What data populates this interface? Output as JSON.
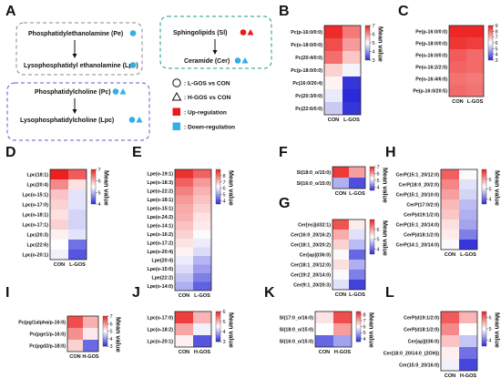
{
  "figure": {
    "panel_a_label": "A"
  },
  "pathway": {
    "pe_node": "Phosphatidylethanolamine (Pe)",
    "lpe_node": "Lysophosphatidyl ethanolamine (Lpe)",
    "pc_node": "Phosphatidylcholine (Pc)",
    "lpc_node": "Lysophosphatidylcholine (Lpc)",
    "sl_node": "Sphingolipids (Sl)",
    "cer_node": "Ceramide (Cer)"
  },
  "legend": {
    "circle_text": ": L-GOS vs CON",
    "triangle_text": ": H-GOS vs CON",
    "up_text": ": Up-regulation",
    "down_text": ": Down-regulation",
    "up_color": "#e8191f",
    "down_color": "#33aee6"
  },
  "colors": {
    "low": "#2a2ad8",
    "mid": "#ffffff",
    "high": "#ec2020"
  },
  "colorbar_title": "Mean value",
  "chart_data": [
    {
      "panel": "B",
      "type": "heatmap",
      "columns": [
        "CON",
        "L-GOS"
      ],
      "rows": [
        "Pc(p-16:0/0:0)",
        "Pc(o-18:0/0:0)",
        "Pc(20:4/0:0)",
        "Pc(p-18:0/0:0)",
        "Pc(16:0/20:4)",
        "Pc(20:3/0:0)",
        "Pc(22:6/0:0)"
      ],
      "values": [
        [
          6.9,
          6.2
        ],
        [
          6.6,
          5.9
        ],
        [
          6.3,
          5.5
        ],
        [
          5.4,
          4.9
        ],
        [
          5.1,
          3.1
        ],
        [
          4.8,
          3.0
        ],
        [
          4.5,
          3.1
        ]
      ],
      "colorbar_ticks": [
        3,
        4,
        5,
        6,
        7
      ],
      "vmin": 3,
      "vmax": 7
    },
    {
      "panel": "C",
      "type": "heatmap",
      "columns": [
        "CON",
        "L-GOS"
      ],
      "rows": [
        "Pe(p-16:0/0:0)",
        "Pe(p-18:0/0:0)",
        "Pe(o-16:0/0:0)",
        "Pe(o-16:2/2:0)",
        "Pe(o-16:4/6:0)",
        "Pe(p-16:0/20:5)"
      ],
      "values": [
        [
          8.9,
          8.9
        ],
        [
          8.7,
          8.6
        ],
        [
          8.2,
          8.0
        ],
        [
          8.1,
          8.0
        ],
        [
          7.9,
          7.8
        ],
        [
          8.0,
          7.9
        ]
      ],
      "colorbar_ticks": [
        3,
        4,
        5,
        6,
        7,
        8,
        9
      ],
      "vmin": 3,
      "vmax": 9
    },
    {
      "panel": "D",
      "type": "heatmap",
      "columns": [
        "CON",
        "L-GOS"
      ],
      "rows": [
        "Lpc(18:1)",
        "Lpc(20:4)",
        "Lpc(o-15:1)",
        "Lpc(o-17:0)",
        "Lpc(o-18:1)",
        "Lpc(o-17:1)",
        "Lpc(20:3)",
        "Lpc(22:6)",
        "Lpc(o-20:1)"
      ],
      "values": [
        [
          7.0,
          6.6
        ],
        [
          6.3,
          5.7
        ],
        [
          5.9,
          5.3
        ],
        [
          5.8,
          5.3
        ],
        [
          5.7,
          5.2
        ],
        [
          5.8,
          5.2
        ],
        [
          5.6,
          5.3
        ],
        [
          5.5,
          4.5
        ],
        [
          5.4,
          4.3
        ]
      ],
      "colorbar_ticks": [
        4,
        5,
        6,
        7
      ],
      "vmin": 4,
      "vmax": 7
    },
    {
      "panel": "E",
      "type": "heatmap",
      "columns": [
        "CON",
        "L-GOS"
      ],
      "rows": [
        "Lpe(o-19:1)",
        "Lpe(o-18:3)",
        "Lpe(o-22:2)",
        "Lpe(o-18:1)",
        "Lpe(o-15:1)",
        "Lpe(o-24:2)",
        "Lpe(o-14:1)",
        "Lpe(o-16:2)",
        "Lpe(o-17:2)",
        "Lpe(o-20:4)",
        "Lpe(20:4)",
        "Lpe(o-15:0)",
        "Lpe(22:2)",
        "Lpe(o-14:0)"
      ],
      "values": [
        [
          8.8,
          8.2
        ],
        [
          8.2,
          7.5
        ],
        [
          7.8,
          7.2
        ],
        [
          7.5,
          7.0
        ],
        [
          7.3,
          6.8
        ],
        [
          7.2,
          6.6
        ],
        [
          7.0,
          6.5
        ],
        [
          6.8,
          6.2
        ],
        [
          6.6,
          6.0
        ],
        [
          6.4,
          5.8
        ],
        [
          6.0,
          5.3
        ],
        [
          5.8,
          5.0
        ],
        [
          5.5,
          4.6
        ],
        [
          5.2,
          4.2
        ]
      ],
      "colorbar_ticks": [
        4,
        5,
        6,
        7,
        8
      ],
      "vmin": 3.5,
      "vmax": 9
    },
    {
      "panel": "F",
      "type": "heatmap",
      "columns": [
        "CON",
        "L-GOS"
      ],
      "rows": [
        "Sl(18:0_o/15:0)",
        "Sl(16:0_o/15:0)"
      ],
      "values": [
        [
          6.8,
          6.0
        ],
        [
          4.6,
          3.8
        ]
      ],
      "colorbar_ticks": [
        4,
        5,
        6,
        7
      ],
      "vmin": 3.5,
      "vmax": 7
    },
    {
      "panel": "G",
      "type": "heatmap",
      "columns": [
        "CON",
        "L-GOS"
      ],
      "rows": [
        "Cer[ns](d32:1)",
        "Cer(16:0_20/16:2)",
        "Cer(18:1_20/20:2)",
        "Cer[ap](t36:0)",
        "Cer(18:1_20/12:0)",
        "Cer(19:2_20/14:0)",
        "Cer(9:1_20/20:3)"
      ],
      "values": [
        [
          6.6,
          5.4
        ],
        [
          5.9,
          5.0
        ],
        [
          5.6,
          4.7
        ],
        [
          5.3,
          4.0
        ],
        [
          5.5,
          4.6
        ],
        [
          5.2,
          4.2
        ],
        [
          5.0,
          3.7
        ]
      ],
      "colorbar_ticks": [
        4,
        5,
        6
      ],
      "vmin": 3.5,
      "vmax": 7
    },
    {
      "panel": "H",
      "type": "heatmap",
      "columns": [
        "CON",
        "L-GOS"
      ],
      "rows": [
        "CerP(15:1_20/12:0)",
        "CerP(18:0_20/2:0)",
        "CerP(15:1_20/10:0)",
        "CerP(17:0/2:0)",
        "CerP(d19:1/2:0)",
        "CerP(15:1_20/14:0)",
        "CerP(d18:1/2:0)",
        "CerP(14:1_20/14:0)"
      ],
      "values": [
        [
          6.5,
          5.3
        ],
        [
          6.2,
          5.0
        ],
        [
          6.0,
          4.9
        ],
        [
          5.8,
          4.7
        ],
        [
          5.7,
          4.6
        ],
        [
          5.5,
          4.5
        ],
        [
          5.4,
          4.2
        ],
        [
          5.2,
          3.6
        ]
      ],
      "colorbar_ticks": [
        4,
        5,
        6
      ],
      "vmin": 3.5,
      "vmax": 7
    },
    {
      "panel": "I",
      "type": "heatmap",
      "columns": [
        "CON",
        "H-GOS"
      ],
      "rows": [
        "Pc(pg/1alpha/p-16:0)",
        "Pc(pge1/p-16:0)",
        "Pc(pgd2/p-18:0)"
      ],
      "values": [
        [
          6.6,
          5.7
        ],
        [
          6.0,
          5.2
        ],
        [
          5.4,
          3.6
        ]
      ],
      "colorbar_ticks": [
        3,
        4,
        5,
        6,
        7
      ],
      "vmin": 3,
      "vmax": 7
    },
    {
      "panel": "J",
      "type": "heatmap",
      "columns": [
        "CON",
        "H-GOS"
      ],
      "rows": [
        "Lpc(o-17:0)",
        "Lpc(o-18:2)",
        "Lpc(o-20:1)"
      ],
      "values": [
        [
          5.8,
          5.0
        ],
        [
          5.1,
          4.4
        ],
        [
          4.6,
          3.3
        ]
      ],
      "colorbar_ticks": [
        3,
        4,
        5,
        6
      ],
      "vmin": 3,
      "vmax": 6
    },
    {
      "panel": "K",
      "type": "heatmap",
      "columns": [
        "CON",
        "H-GOS"
      ],
      "rows": [
        "Sl(17:0_o/16:0)",
        "Sl(18:0_o/15:0)",
        "Sl(16:0_o/15:0)"
      ],
      "values": [
        [
          6.3,
          8.0
        ],
        [
          6.0,
          7.1
        ],
        [
          4.2,
          4.9
        ]
      ],
      "colorbar_ticks": [
        4,
        5,
        6,
        7,
        8
      ],
      "vmin": 3.5,
      "vmax": 8.5
    },
    {
      "panel": "L",
      "type": "heatmap",
      "columns": [
        "CON",
        "H-GOS"
      ],
      "rows": [
        "CerP(d19:1/2:0)",
        "CerP(d18:1/2:0)",
        "Cer[ap](t36:0)",
        "Cer(18:0_20/14:0_(2OH))",
        "Cer(15:0_20/16:0)"
      ],
      "values": [
        [
          6.1,
          5.5
        ],
        [
          5.8,
          5.0
        ],
        [
          5.4,
          4.6
        ],
        [
          5.1,
          4.0
        ],
        [
          4.9,
          3.7
        ]
      ],
      "colorbar_ticks": [
        4,
        5,
        6
      ],
      "vmin": 3.5,
      "vmax": 6.5
    }
  ]
}
